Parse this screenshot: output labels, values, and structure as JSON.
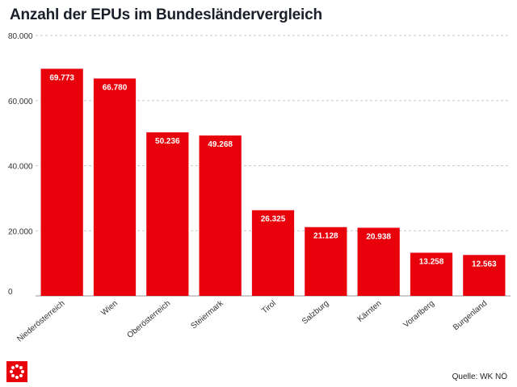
{
  "chart_data": {
    "type": "bar",
    "title": "Anzahl der EPUs im Bundesländervergleich",
    "categories": [
      "Niederösterreich",
      "Wien",
      "Oberösterreich",
      "Steiermark",
      "Tirol",
      "Salzburg",
      "Kärnten",
      "Vorarlberg",
      "Burgenland"
    ],
    "values": [
      69773,
      66780,
      50236,
      49268,
      26325,
      21128,
      20938,
      13258,
      12563
    ],
    "value_labels": [
      "69.773",
      "66.780",
      "50.236",
      "49.268",
      "26.325",
      "21.128",
      "20.938",
      "13.258",
      "12.563"
    ],
    "yticks": [
      0,
      20000,
      40000,
      60000,
      80000
    ],
    "ytick_labels": [
      "0",
      "20.000",
      "40.000",
      "60.000",
      "80.000"
    ],
    "ylim": [
      0,
      80000
    ],
    "xlabel": "",
    "ylabel": "",
    "grid": true,
    "bar_color": "#e8000b"
  },
  "source": "Quelle: WK NÖ",
  "logo_icon": "wk-logo-icon"
}
